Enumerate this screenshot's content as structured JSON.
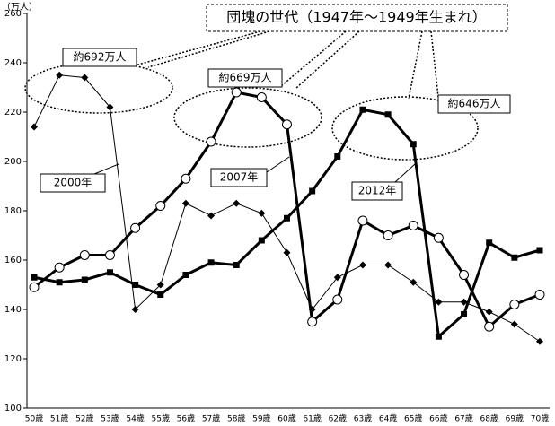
{
  "chart_data": {
    "type": "line",
    "title": "団塊の世代（1947年～1949年生まれ）",
    "y_unit": "（万人）",
    "annotations": [
      "約692万人",
      "約669万人",
      "約646万人"
    ],
    "categories": [
      "50歳",
      "51歳",
      "52歳",
      "53歳",
      "54歳",
      "55歳",
      "56歳",
      "57歳",
      "58歳",
      "59歳",
      "60歳",
      "61歳",
      "62歳",
      "63歳",
      "64歳",
      "65歳",
      "66歳",
      "67歳",
      "68歳",
      "69歳",
      "70歳"
    ],
    "series": [
      {
        "name": "2000年",
        "color": "#000000",
        "marker": "diamond",
        "width": 1,
        "values": [
          214,
          235,
          234,
          222,
          140,
          150,
          183,
          178,
          183,
          179,
          163,
          140,
          153,
          158,
          158,
          151,
          143,
          143,
          139,
          134,
          127
        ]
      },
      {
        "name": "2007年",
        "color": "#000000",
        "marker": "circle",
        "width": 3,
        "values": [
          149,
          157,
          162,
          162,
          173,
          182,
          193,
          208,
          228,
          226,
          215,
          135,
          144,
          176,
          170,
          174,
          169,
          154,
          133,
          142,
          146
        ]
      },
      {
        "name": "2012年",
        "color": "#000000",
        "marker": "square",
        "width": 3,
        "values": [
          153,
          151,
          152,
          155,
          150,
          146,
          154,
          159,
          158,
          168,
          177,
          188,
          202,
          221,
          219,
          207,
          129,
          138,
          167,
          161,
          164
        ]
      }
    ],
    "ylim": [
      100,
      260
    ],
    "yticks": [
      100,
      120,
      140,
      160,
      180,
      200,
      220,
      240,
      260
    ]
  }
}
